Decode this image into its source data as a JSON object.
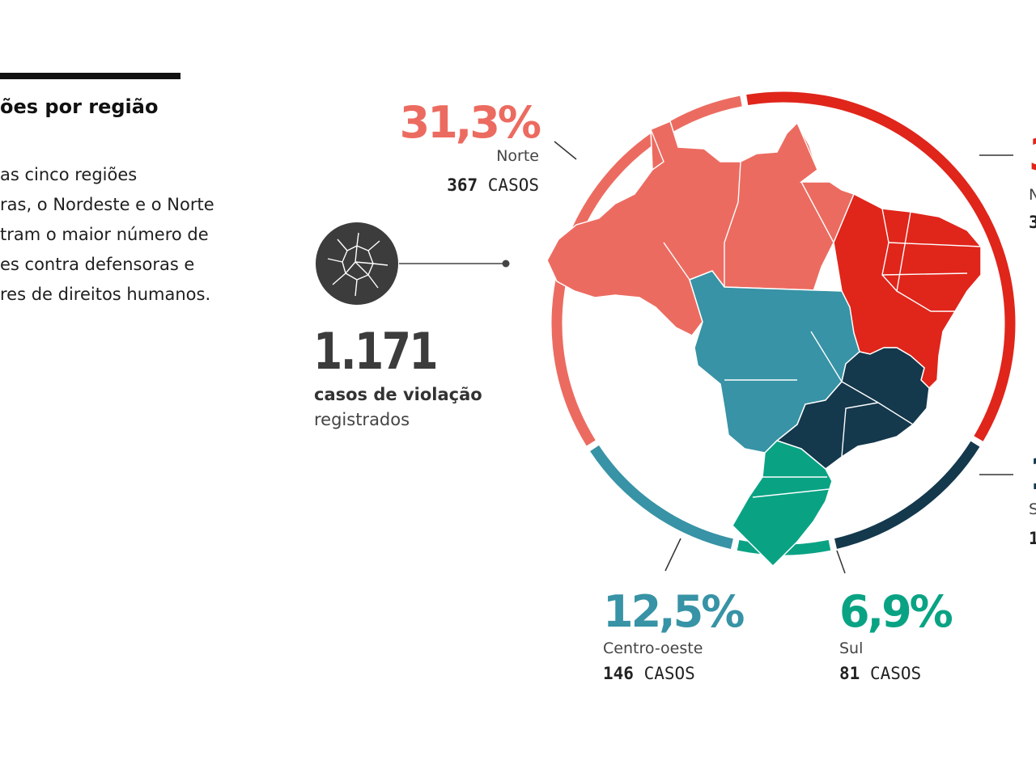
{
  "header": {
    "title": "ões por região",
    "intro_lines": [
      "as cinco regiões",
      "ras, o Nordeste e o Norte",
      "tram o maior número de",
      "es contra defensoras e",
      "res de direitos humanos."
    ]
  },
  "summary": {
    "total": "1.171",
    "label_line1": "casos de violação",
    "label_line2": "registrados",
    "icon": "broken-glass-icon"
  },
  "chart_data": {
    "type": "pie",
    "style": "donut-ring-around-map",
    "categories": [
      "Nordeste",
      "Sudeste",
      "Sul",
      "Centro-oeste",
      "Norte"
    ],
    "series": [
      {
        "values_pct": [
          36.5,
          12.8,
          6.9,
          12.5,
          31.3
        ],
        "colors": [
          "#e0251b",
          "#14384c",
          "#09a384",
          "#3793a5",
          "#ec6b60"
        ]
      }
    ],
    "labels": [
      {
        "region": "Norte",
        "pct_text": "31,3%",
        "cases": "367",
        "cases_unit": "CASOS",
        "color": "#ec6b60"
      },
      {
        "region": "N",
        "pct_text": "3",
        "cases": "3",
        "cases_unit": "",
        "color": "#e0251b"
      },
      {
        "region": "S",
        "pct_text": "1",
        "cases": "1",
        "cases_unit": "",
        "color": "#14384c"
      },
      {
        "region": "Centro-oeste",
        "pct_text": "12,5%",
        "cases": "146",
        "cases_unit": "CASOS",
        "color": "#3793a5"
      },
      {
        "region": "Sul",
        "pct_text": "6,9%",
        "cases": "81",
        "cases_unit": "CASOS",
        "color": "#09a384"
      }
    ],
    "map_regions": [
      {
        "name": "Norte",
        "color": "#ec6b60"
      },
      {
        "name": "Nordeste",
        "color": "#e0251b"
      },
      {
        "name": "Centro-oeste",
        "color": "#3793a5"
      },
      {
        "name": "Sudeste",
        "color": "#14384c"
      },
      {
        "name": "Sul",
        "color": "#09a384"
      }
    ]
  }
}
